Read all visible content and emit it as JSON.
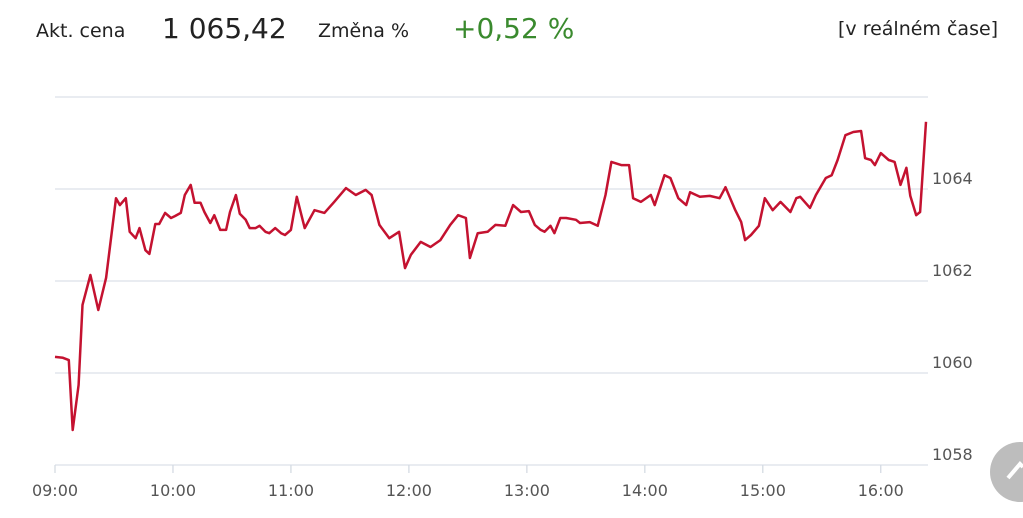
{
  "header": {
    "price_label": "Akt. cena",
    "price": "1 065,42",
    "change_label": "Změna %",
    "change": "+0,52 %",
    "realtime": "[v reálném čase]"
  },
  "chart_data": {
    "type": "line",
    "color": "#c41230",
    "grid": true,
    "ylim": [
      1058,
      1066
    ],
    "yticks": [
      1058,
      1060,
      1062,
      1064
    ],
    "xlim": [
      "09:00",
      "16:24"
    ],
    "xticks": [
      "09:00",
      "10:00",
      "11:00",
      "12:00",
      "13:00",
      "14:00",
      "15:00",
      "16:00"
    ],
    "x": [
      "09:00",
      "09:04",
      "09:07",
      "09:09",
      "09:12",
      "09:14",
      "09:18",
      "09:22",
      "09:26",
      "09:31",
      "09:33",
      "09:36",
      "09:38",
      "09:41",
      "09:43",
      "09:46",
      "09:48",
      "09:51",
      "09:53",
      "09:56",
      "09:59",
      "10:01",
      "10:04",
      "10:06",
      "10:09",
      "10:11",
      "10:14",
      "10:16",
      "10:19",
      "10:21",
      "10:24",
      "10:27",
      "10:29",
      "10:32",
      "10:34",
      "10:37",
      "10:39",
      "10:42",
      "10:44",
      "10:47",
      "10:49",
      "10:52",
      "10:55",
      "10:57",
      "11:00",
      "11:03",
      "11:07",
      "11:12",
      "11:17",
      "11:22",
      "11:28",
      "11:33",
      "11:38",
      "11:41",
      "11:45",
      "11:50",
      "11:55",
      "11:58",
      "12:01",
      "12:06",
      "12:11",
      "12:16",
      "12:21",
      "12:25",
      "12:29",
      "12:31",
      "12:35",
      "12:40",
      "12:44",
      "12:49",
      "12:53",
      "12:57",
      "13:01",
      "13:04",
      "13:07",
      "13:09",
      "13:12",
      "13:14",
      "13:17",
      "13:20",
      "13:25",
      "13:27",
      "13:32",
      "13:36",
      "13:40",
      "13:43",
      "13:48",
      "13:52",
      "13:54",
      "13:58",
      "14:03",
      "14:05",
      "14:10",
      "14:13",
      "14:17",
      "14:21",
      "14:23",
      "14:28",
      "14:33",
      "14:38",
      "14:41",
      "14:46",
      "14:49",
      "14:51",
      "14:54",
      "14:58",
      "15:01",
      "15:05",
      "15:09",
      "15:14",
      "15:17",
      "15:19",
      "15:24",
      "15:27",
      "15:32",
      "15:35",
      "15:38",
      "15:42",
      "15:46",
      "15:50",
      "15:52",
      "15:55",
      "15:57",
      "16:00",
      "16:04",
      "16:07",
      "16:10",
      "16:13",
      "16:15",
      "16:18",
      "16:20",
      "16:23"
    ],
    "values": [
      1060.35,
      1060.33,
      1060.28,
      1058.76,
      1059.74,
      1061.48,
      1062.13,
      1061.37,
      1062.07,
      1063.8,
      1063.65,
      1063.8,
      1063.07,
      1062.93,
      1063.15,
      1062.67,
      1062.59,
      1063.24,
      1063.24,
      1063.48,
      1063.37,
      1063.41,
      1063.48,
      1063.87,
      1064.09,
      1063.7,
      1063.7,
      1063.5,
      1063.26,
      1063.43,
      1063.11,
      1063.11,
      1063.5,
      1063.87,
      1063.46,
      1063.33,
      1063.15,
      1063.15,
      1063.2,
      1063.07,
      1063.04,
      1063.15,
      1063.04,
      1063.0,
      1063.11,
      1063.83,
      1063.15,
      1063.54,
      1063.48,
      1063.72,
      1064.02,
      1063.87,
      1063.98,
      1063.87,
      1063.22,
      1062.93,
      1063.07,
      1062.28,
      1062.57,
      1062.85,
      1062.74,
      1062.89,
      1063.22,
      1063.43,
      1063.37,
      1062.5,
      1063.04,
      1063.07,
      1063.22,
      1063.2,
      1063.65,
      1063.5,
      1063.52,
      1063.22,
      1063.11,
      1063.07,
      1063.2,
      1063.04,
      1063.37,
      1063.37,
      1063.33,
      1063.26,
      1063.28,
      1063.2,
      1063.87,
      1064.59,
      1064.52,
      1064.52,
      1063.8,
      1063.72,
      1063.87,
      1063.65,
      1064.3,
      1064.24,
      1063.8,
      1063.65,
      1063.93,
      1063.83,
      1063.85,
      1063.8,
      1064.04,
      1063.54,
      1063.28,
      1062.89,
      1063.0,
      1063.2,
      1063.8,
      1063.54,
      1063.72,
      1063.5,
      1063.8,
      1063.83,
      1063.59,
      1063.87,
      1064.24,
      1064.3,
      1064.63,
      1065.17,
      1065.24,
      1065.26,
      1064.67,
      1064.63,
      1064.52,
      1064.78,
      1064.63,
      1064.59,
      1064.09,
      1064.46,
      1063.85,
      1063.43,
      1063.5,
      1065.46
    ]
  }
}
